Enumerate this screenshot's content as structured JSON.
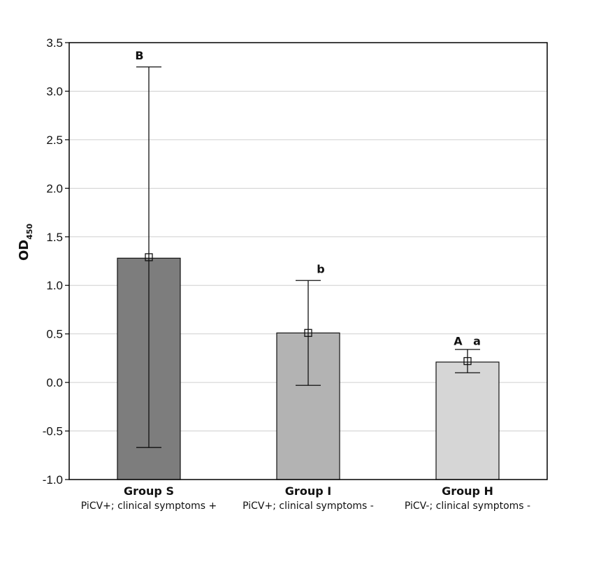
{
  "chart_data": {
    "type": "bar",
    "title": "",
    "ylabel": {
      "main": "OD",
      "subscript": "450"
    },
    "ylim": [
      -1.0,
      3.5
    ],
    "yticks": [
      "-1.0",
      "-0.5",
      "0.0",
      "0.5",
      "1.0",
      "1.5",
      "2.0",
      "2.5",
      "3.0",
      "3.5"
    ],
    "grid": true,
    "categories": [
      {
        "label": "Group S",
        "sublabel": "PiCV+; clinical symptoms +"
      },
      {
        "label": "Group I",
        "sublabel": "PiCV+; clinical symptoms -"
      },
      {
        "label": "Group H",
        "sublabel": "PiCV-; clinical symptoms -"
      }
    ],
    "values": [
      1.28,
      0.51,
      0.21
    ],
    "means": [
      1.29,
      0.51,
      0.22
    ],
    "error_low": [
      -0.67,
      -0.03,
      0.1
    ],
    "error_high": [
      3.25,
      1.05,
      0.34
    ],
    "bar_colors": [
      "#7d7d7d",
      "#b3b3b3",
      "#d6d6d6"
    ],
    "annotations": [
      {
        "text": "B",
        "category": 0,
        "y": 3.37,
        "offset": -0.15
      },
      {
        "text": "b",
        "category": 1,
        "y": 1.17,
        "offset": 0.2
      },
      {
        "text": "A",
        "category": 2,
        "y": 0.43,
        "offset": -0.15
      },
      {
        "text": "a",
        "category": 2,
        "y": 0.43,
        "offset": 0.15
      }
    ]
  }
}
